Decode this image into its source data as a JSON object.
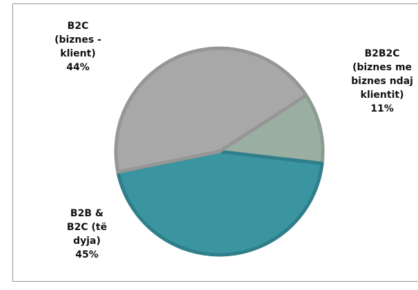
{
  "chart_data": {
    "type": "pie",
    "categories": [
      "B2B2C (biznes me biznes ndaj klientit)",
      "B2B & B2C (të dyja)",
      "B2C (biznes - klient)"
    ],
    "values": [
      11,
      45,
      44
    ],
    "value_labels": [
      "11%",
      "45%",
      "44%"
    ],
    "colors": [
      "#9aaea2",
      "#3a95a1",
      "#a8a8a8"
    ]
  }
}
